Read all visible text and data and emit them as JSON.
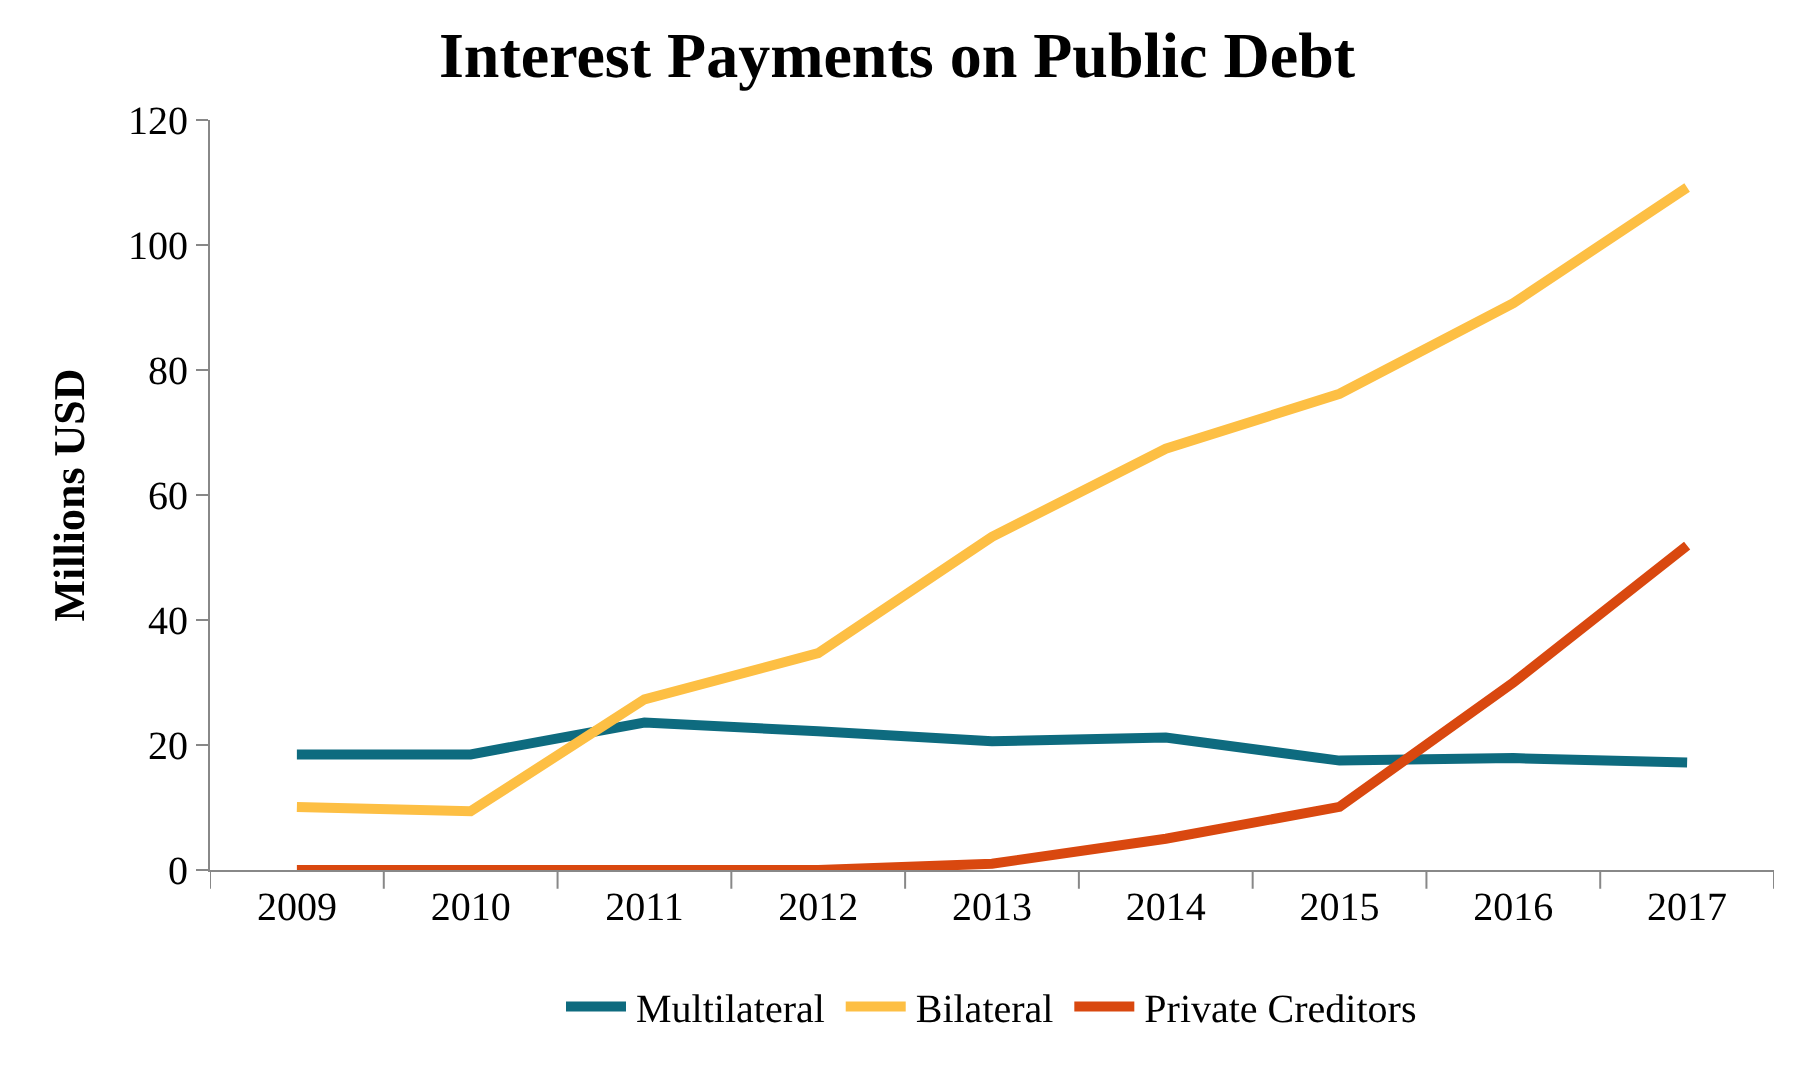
{
  "chart_data": {
    "type": "line",
    "title": "Interest Payments on Public Debt",
    "ylabel": "Millions USD",
    "categories": [
      "2009",
      "2010",
      "2011",
      "2012",
      "2013",
      "2014",
      "2015",
      "2016",
      "2017"
    ],
    "series": [
      {
        "name": "Multilateral",
        "color": "#0e6b7f",
        "values": [
          18.5,
          18.5,
          23.6,
          22.2,
          20.6,
          21.2,
          17.5,
          17.9,
          17.2
        ]
      },
      {
        "name": "Bilateral",
        "color": "#fdbf44",
        "values": [
          10.1,
          9.4,
          27.3,
          34.7,
          53.3,
          67.4,
          76.2,
          90.7,
          109.2
        ]
      },
      {
        "name": "Private Creditors",
        "color": "#d9480f",
        "values": [
          0,
          0,
          0,
          0,
          1,
          5,
          10.1,
          30,
          51.9
        ]
      }
    ],
    "ylim": [
      0,
      120
    ],
    "yticks": [
      0,
      20,
      40,
      60,
      80,
      100,
      120
    ],
    "grid": false,
    "legend": "bottom",
    "marker": "none",
    "line_style": "solid"
  }
}
